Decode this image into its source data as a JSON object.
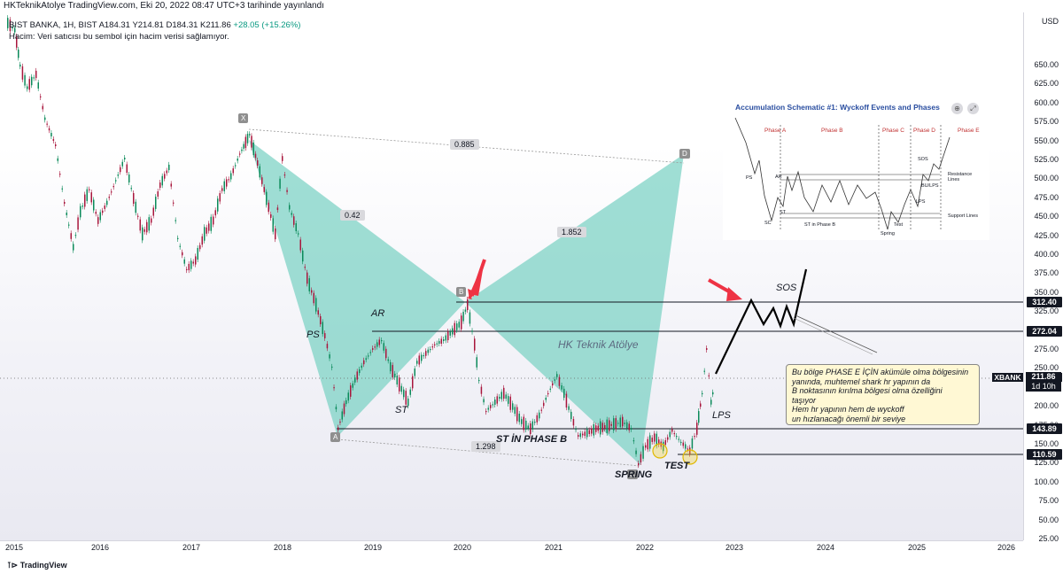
{
  "header": {
    "published": "HKTeknikAtolye TradingView.com, Eki 20, 2022 08:47 UTC+3 tarihinde yayınlandı"
  },
  "symbol_info": {
    "name": "BIST BANKA, 1H, BIST",
    "a": "A184.31",
    "y": "Y214.81",
    "d": "D184.31",
    "k": "K211.86",
    "change": "+28.05 (+15.26%)",
    "volume_note": "Hacim: Veri satıcısı bu sembol için hacim verisi sağlamıyor."
  },
  "price_axis": {
    "currency": "USD",
    "ticks": [
      "650.00",
      "625.00",
      "600.00",
      "575.00",
      "550.00",
      "525.00",
      "500.00",
      "475.00",
      "450.00",
      "425.00",
      "400.00",
      "375.00",
      "350.00",
      "325.00",
      "300.00",
      "275.00",
      "250.00",
      "225.00",
      "200.00",
      "175.00",
      "150.00",
      "125.00",
      "100.00",
      "75.00",
      "50.00",
      "25.00"
    ]
  },
  "time_axis": {
    "labels": [
      "2015",
      "2016",
      "2017",
      "2018",
      "2019",
      "2020",
      "2021",
      "2022",
      "2023",
      "2024",
      "2025",
      "2026"
    ]
  },
  "levels": [
    {
      "label": "312.40"
    },
    {
      "label": "272.04"
    },
    {
      "label": "143.89"
    },
    {
      "label": "110.59"
    }
  ],
  "current": {
    "symbol": "XBANK",
    "price": "211.86",
    "countdown": "1d 10h"
  },
  "pattern_points": {
    "x": "X",
    "a": "A",
    "b": "B",
    "c": "C",
    "d": "D"
  },
  "ratios": {
    "xd": "0.885",
    "xab": "0.42",
    "bcd": "1.852",
    "ac": "1.298"
  },
  "annotations": {
    "ps": "PS",
    "ar": "AR",
    "st": "ST",
    "st_phase_b": "ST İN PHASE B",
    "spring": "SPRING",
    "test": "TEST",
    "lps": "LPS",
    "sos": "SOS",
    "watermark": "HK Teknik Atölye"
  },
  "callout": {
    "lines": [
      "Bu bölge PHASE E İÇİN akümüle olma bölgesinin",
      "yanında, muhtemel shark hr yapının da",
      "B noktasının kırılma bölgesi olma özelliğini",
      "taşıyor",
      "Hem hr yapının hem de wyckoff",
      "un hızlanacağı önemli bir seviye"
    ]
  },
  "schematic": {
    "title": "Accumulation Schematic #1: Wyckoff Events and Phases",
    "phases": [
      "Phase A",
      "Phase B",
      "Phase C",
      "Phase D",
      "Phase E"
    ],
    "labels": {
      "ps": "PS",
      "sc": "SC",
      "ar": "AR",
      "st": "ST",
      "st_b": "ST in Phase B",
      "spring": "Spring",
      "test": "Test",
      "lps": "LPS",
      "bu_lps": "BU/LPS",
      "sos": "SOS",
      "resistance": "Resistance Lines",
      "support": "Support Lines"
    }
  },
  "footer": {
    "brand": "TradingView"
  },
  "colors": {
    "pattern_fill": "#7fd3c5",
    "candle_up": "#0b8a5a",
    "candle_down": "#a8163c",
    "arrow": "#ee3344",
    "level_line": "#131722"
  }
}
